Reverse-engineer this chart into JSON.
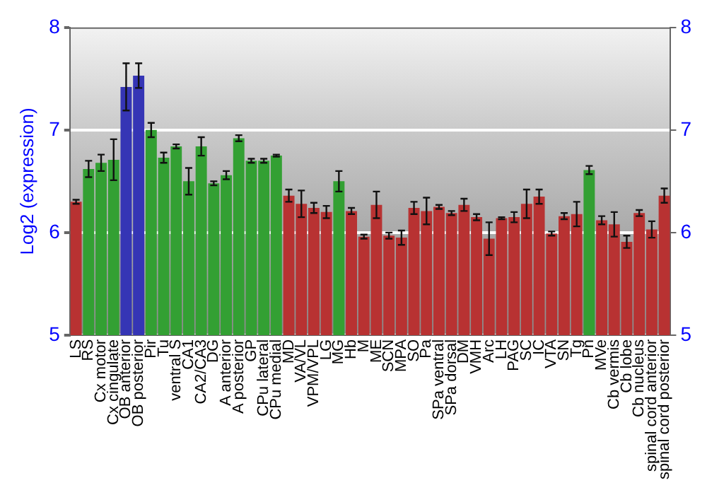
{
  "chart_data": {
    "type": "bar",
    "ylabel": "Log2 (expression)",
    "categories": [
      "LS",
      "RS",
      "Cx motor",
      "Cx cingulate",
      "OB anterior",
      "OB posterior",
      "Pir",
      "Tu",
      "ventral S",
      "CA1",
      "CA2/CA3",
      "DG",
      "A anterior",
      "A posterior",
      "GP",
      "CPu lateral",
      "CPu medial",
      "MD",
      "VA/VL",
      "VPM/VPL",
      "LG",
      "MG",
      "Hb",
      "M",
      "ME",
      "SCN",
      "MPA",
      "SO",
      "Pa",
      "SPa ventral",
      "SPa dorsal",
      "DM",
      "VMH",
      "Arc",
      "LH",
      "PAG",
      "SC",
      "IC",
      "VTA",
      "SN",
      "Tg",
      "Pn",
      "MVe",
      "Cb vermis",
      "Cb lobe",
      "Cb nucleus",
      "spinal cord anterior",
      "spinal cord posterior"
    ],
    "values": [
      6.3,
      6.62,
      6.68,
      6.71,
      7.42,
      7.53,
      7.0,
      6.73,
      6.84,
      6.5,
      6.84,
      6.48,
      6.56,
      6.92,
      6.7,
      6.7,
      6.75,
      6.36,
      6.28,
      6.24,
      6.2,
      6.5,
      6.21,
      5.96,
      6.27,
      5.97,
      5.95,
      6.24,
      6.21,
      6.25,
      6.19,
      6.27,
      6.15,
      5.94,
      6.14,
      6.15,
      6.28,
      6.35,
      5.99,
      6.16,
      6.18,
      6.61,
      6.12,
      6.08,
      5.91,
      6.19,
      6.03,
      6.36
    ],
    "errors": [
      0.02,
      0.08,
      0.08,
      0.2,
      0.23,
      0.12,
      0.07,
      0.05,
      0.02,
      0.13,
      0.09,
      0.02,
      0.04,
      0.03,
      0.02,
      0.02,
      0.01,
      0.06,
      0.13,
      0.05,
      0.06,
      0.1,
      0.03,
      0.02,
      0.13,
      0.03,
      0.07,
      0.06,
      0.13,
      0.02,
      0.02,
      0.06,
      0.03,
      0.16,
      0.01,
      0.05,
      0.14,
      0.07,
      0.02,
      0.03,
      0.12,
      0.04,
      0.04,
      0.12,
      0.06,
      0.03,
      0.08,
      0.07
    ],
    "colors": [
      "#b83232",
      "#33a033",
      "#33a033",
      "#33a033",
      "#3535b5",
      "#3535b5",
      "#33a033",
      "#33a033",
      "#33a033",
      "#33a033",
      "#33a033",
      "#33a033",
      "#33a033",
      "#33a033",
      "#33a033",
      "#33a033",
      "#33a033",
      "#b83232",
      "#b83232",
      "#b83232",
      "#b83232",
      "#33a033",
      "#b83232",
      "#b83232",
      "#b83232",
      "#b83232",
      "#b83232",
      "#b83232",
      "#b83232",
      "#b83232",
      "#b83232",
      "#b83232",
      "#b83232",
      "#b83232",
      "#b83232",
      "#b83232",
      "#b83232",
      "#b83232",
      "#b83232",
      "#b83232",
      "#b83232",
      "#33a033",
      "#b83232",
      "#b83232",
      "#b83232",
      "#b83232",
      "#b83232",
      "#b83232"
    ],
    "ylim": [
      5,
      8
    ],
    "yticks": [
      5,
      6,
      7,
      8
    ],
    "y2lim": [
      5,
      8
    ],
    "y2ticks": [
      5,
      6,
      7,
      8
    ],
    "grid": "y",
    "legend": false
  }
}
